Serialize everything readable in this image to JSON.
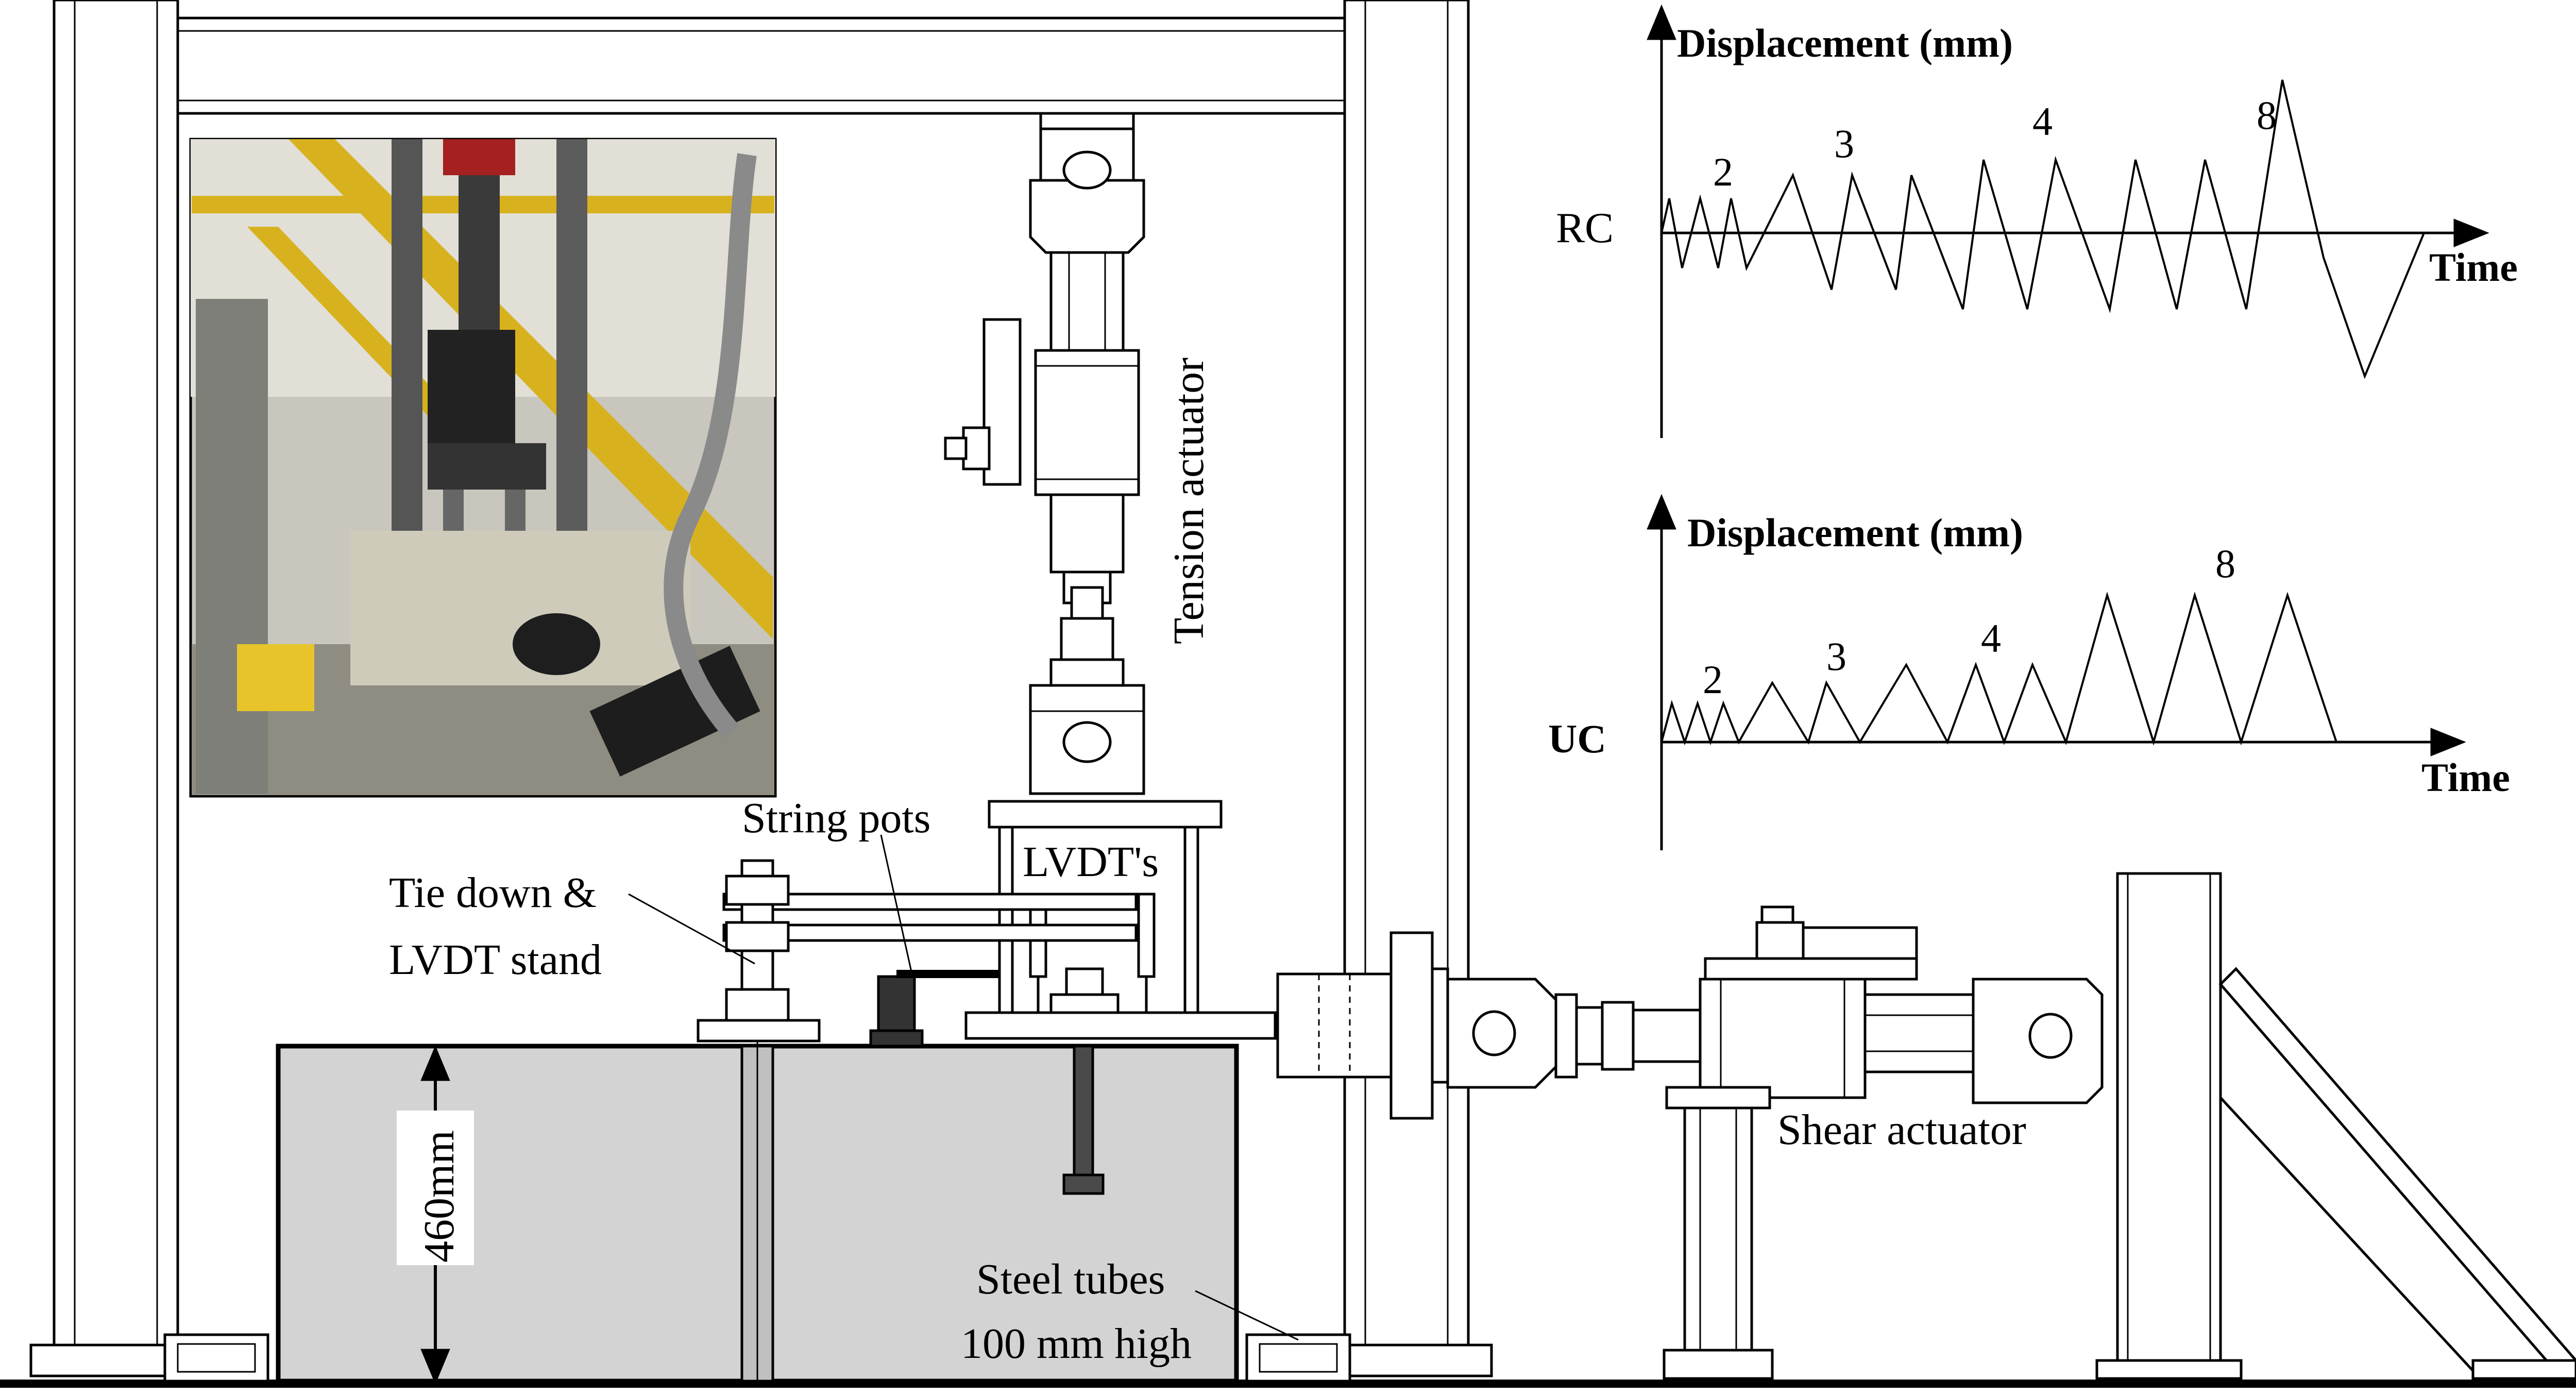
{
  "labels": {
    "tension_actuator": "Tension actuator",
    "string_pots": "String pots",
    "lvdts": "LVDT's",
    "tie_down_line1": "Tie down &",
    "tie_down_line2": "LVDT stand",
    "dimension": "460mm",
    "steel_tubes_line1": "Steel tubes",
    "steel_tubes_line2": "100 mm high",
    "shear_actuator": "Shear actuator"
  },
  "charts": {
    "rc": {
      "y_axis": "Displacement (mm)",
      "x_axis": "Time",
      "series_label": "RC",
      "cycle_labels": [
        "2",
        "3",
        "4",
        "8"
      ]
    },
    "uc": {
      "y_axis": "Displacement (mm)",
      "x_axis": "Time",
      "series_label": "UC",
      "cycle_labels": [
        "2",
        "3",
        "4",
        "8"
      ]
    }
  },
  "colors": {
    "line": "#000000",
    "concrete_fill": "#d3d3d3",
    "photo_tone": "#7a7a70",
    "yellow_member": "#d8b21e"
  }
}
